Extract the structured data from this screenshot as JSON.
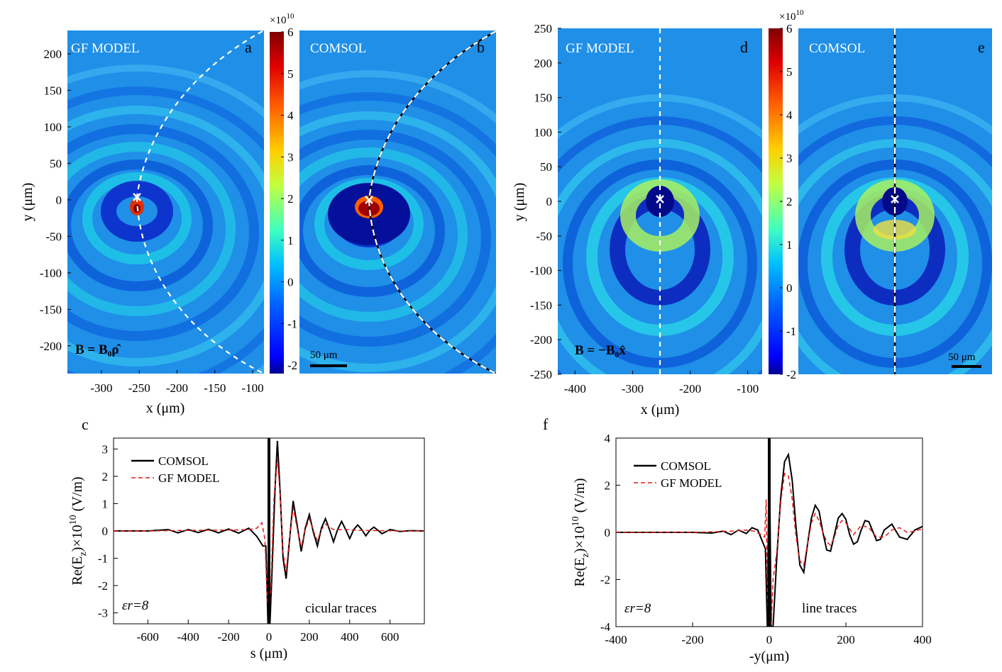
{
  "colorscale": [
    "#00008f",
    "#0000ff",
    "#0080ff",
    "#00ffff",
    "#80ff80",
    "#ffff00",
    "#ff8000",
    "#ff0000",
    "#800000"
  ],
  "panels": {
    "a": {
      "letter": "a",
      "label": "GF MODEL",
      "field_label": "B = B₀ρ̂",
      "trace": "circle"
    },
    "b": {
      "letter": "b",
      "label": "COMSOL",
      "scalebar": "50 μm",
      "trace": "circle"
    },
    "d": {
      "letter": "d",
      "label": "GF MODEL",
      "field_label": "B = −B₀x̂",
      "trace": "line"
    },
    "e": {
      "letter": "e",
      "label": "COMSOL",
      "scalebar": "50 μm",
      "trace": "line"
    }
  },
  "left_maps": {
    "xlabel": "x (μm)",
    "ylabel": "y (μm)",
    "xlim": [
      -345,
      -85
    ],
    "ylim": [
      -238,
      232
    ],
    "xticks": [
      -300,
      -250,
      -200,
      -150,
      -100
    ],
    "yticks": [
      200,
      150,
      100,
      50,
      0,
      -50,
      -100,
      -150,
      -200
    ],
    "source_point": [
      -250,
      5
    ]
  },
  "right_maps": {
    "xlabel": "x (μm)",
    "ylabel": "y (μm)",
    "xlim": [
      -430,
      -75
    ],
    "ylim": [
      -250,
      250
    ],
    "xticks": [
      -400,
      -300,
      -200,
      -100
    ],
    "yticks": [
      250,
      200,
      150,
      100,
      50,
      0,
      -50,
      -100,
      -150,
      -200,
      -250
    ],
    "source_point": [
      -250,
      3
    ]
  },
  "colorbar_left": {
    "multiplier": "×10",
    "exponent": "10",
    "ticks": [
      6,
      5,
      4,
      3,
      2,
      1,
      0,
      -1,
      -2
    ],
    "range": [
      -2.2,
      6
    ]
  },
  "colorbar_right": {
    "multiplier": "×10",
    "exponent": "10",
    "ticks": [
      6,
      5,
      4,
      3,
      2,
      1,
      0,
      -1,
      -2
    ],
    "range": [
      -2,
      6
    ]
  },
  "chart_data": [
    {
      "type": "line",
      "panel": "c",
      "xlabel": "s (μm)",
      "ylabel_main": "Re(E",
      "ylabel_sub": "z",
      "ylabel_rest": ")×10",
      "ylabel_exp": "10",
      "ylabel_unit": " (V/m)",
      "xlim": [
        -770,
        770
      ],
      "ylim": [
        -3.4,
        3.4
      ],
      "xticks": [
        -600,
        -400,
        -200,
        0,
        200,
        400,
        600
      ],
      "yticks": [
        3,
        2,
        1,
        0,
        -1,
        -2,
        -3
      ],
      "annotation_eps": "εr=8",
      "annotation": "cicular traces",
      "series": [
        {
          "name": "COMSOL",
          "style": "solid",
          "color": "#000000",
          "x": [
            -770,
            -600,
            -500,
            -450,
            -400,
            -350,
            -300,
            -250,
            -200,
            -150,
            -100,
            -60,
            -30,
            -15,
            -5,
            0,
            5,
            15,
            30,
            42,
            55,
            70,
            85,
            100,
            120,
            140,
            160,
            180,
            200,
            220,
            240,
            260,
            280,
            300,
            320,
            340,
            360,
            380,
            400,
            420,
            440,
            460,
            480,
            500,
            520,
            540,
            560,
            600,
            650,
            700,
            770
          ],
          "y": [
            0,
            0,
            0.05,
            -0.07,
            0.05,
            -0.06,
            0.06,
            -0.07,
            0.07,
            -0.08,
            0.1,
            -0.2,
            -0.55,
            -0.55,
            -3.4,
            3.4,
            -3.4,
            -1.5,
            1.5,
            3.3,
            1.5,
            -1.0,
            -1.75,
            -0.5,
            1.1,
            0.2,
            -0.75,
            0.1,
            0.6,
            -0.05,
            -0.55,
            0.1,
            0.45,
            0.05,
            -0.4,
            0.05,
            0.35,
            0.05,
            -0.28,
            0.05,
            0.22,
            0.05,
            -0.18,
            0.02,
            0.14,
            0.02,
            -0.1,
            0.05,
            -0.02,
            0.01,
            0
          ]
        },
        {
          "name": "GF MODEL",
          "style": "dashed",
          "color": "#e31a1c",
          "x": [
            -770,
            -600,
            -400,
            -200,
            -100,
            -60,
            -35,
            -20,
            -10,
            0,
            10,
            25,
            42,
            55,
            70,
            85,
            100,
            120,
            140,
            160,
            180,
            200,
            220,
            240,
            260,
            280,
            320,
            380,
            450,
            550,
            650,
            770
          ],
          "y": [
            0,
            0,
            0.02,
            0.03,
            0.05,
            0.1,
            0.3,
            -0.3,
            -2.3,
            -3.3,
            -2.0,
            1.2,
            2.65,
            1.4,
            -0.8,
            -1.5,
            -0.4,
            0.85,
            0.1,
            -0.6,
            0.05,
            0.45,
            0.0,
            -0.35,
            0.05,
            0.25,
            0.05,
            0.05,
            0.02,
            0.01,
            0,
            0
          ]
        }
      ]
    },
    {
      "type": "line",
      "panel": "f",
      "xlabel": "-y(μm)",
      "ylabel_main": "Re(E",
      "ylabel_sub": "z",
      "ylabel_rest": ")×10",
      "ylabel_exp": "10",
      "ylabel_unit": " (V/m)",
      "xlim": [
        -400,
        400
      ],
      "ylim": [
        -4,
        4
      ],
      "xticks": [
        -400,
        -200,
        0,
        200,
        400
      ],
      "yticks": [
        4,
        2,
        0,
        -2,
        -4
      ],
      "annotation_eps": "εr=8",
      "annotation": "line traces",
      "series": [
        {
          "name": "COMSOL",
          "style": "solid",
          "color": "#000000",
          "x": [
            -400,
            -300,
            -200,
            -150,
            -120,
            -100,
            -80,
            -60,
            -45,
            -30,
            -20,
            -10,
            -5,
            0,
            5,
            10,
            20,
            30,
            40,
            50,
            60,
            70,
            80,
            90,
            100,
            110,
            120,
            130,
            140,
            150,
            160,
            170,
            180,
            190,
            200,
            210,
            220,
            230,
            240,
            250,
            260,
            270,
            280,
            290,
            300,
            320,
            340,
            360,
            380,
            400
          ],
          "y": [
            0,
            0,
            0,
            -0.03,
            0.05,
            -0.1,
            0.1,
            -0.05,
            0.2,
            0.1,
            -0.3,
            -0.7,
            -4,
            4,
            -4,
            -4,
            -1.0,
            1.5,
            3.0,
            3.3,
            2.2,
            0.2,
            -1.4,
            -1.7,
            -0.5,
            0.6,
            1.15,
            0.9,
            0.0,
            -0.75,
            -0.8,
            -0.1,
            0.6,
            0.8,
            0.55,
            -0.1,
            -0.5,
            -0.4,
            0.1,
            0.5,
            0.45,
            0.05,
            -0.35,
            -0.3,
            0.1,
            0.35,
            -0.2,
            -0.3,
            0.1,
            0.25
          ]
        },
        {
          "name": "GF MODEL",
          "style": "dashed",
          "color": "#e31a1c",
          "x": [
            -400,
            -300,
            -200,
            -150,
            -100,
            -60,
            -40,
            -20,
            -12,
            -8,
            -5,
            0,
            5,
            10,
            20,
            30,
            40,
            50,
            60,
            70,
            80,
            90,
            100,
            110,
            120,
            130,
            140,
            150,
            160,
            170,
            180,
            190,
            200,
            220,
            240,
            260,
            280,
            300,
            320,
            340,
            360,
            380,
            400
          ],
          "y": [
            0,
            0,
            0,
            0.02,
            0.05,
            0.1,
            0.05,
            -0.1,
            -0.2,
            1.4,
            -2.5,
            -4,
            -4,
            -2.0,
            -0.8,
            1.3,
            2.5,
            2.4,
            1.4,
            -0.2,
            -1.2,
            -1.4,
            -0.5,
            0.4,
            0.8,
            0.5,
            0.0,
            -0.4,
            -0.55,
            -0.2,
            0.3,
            0.5,
            0.4,
            -0.1,
            0.3,
            0.2,
            -0.2,
            -0.2,
            0.1,
            0.2,
            0.0,
            0.05,
            0.15
          ]
        }
      ]
    }
  ]
}
